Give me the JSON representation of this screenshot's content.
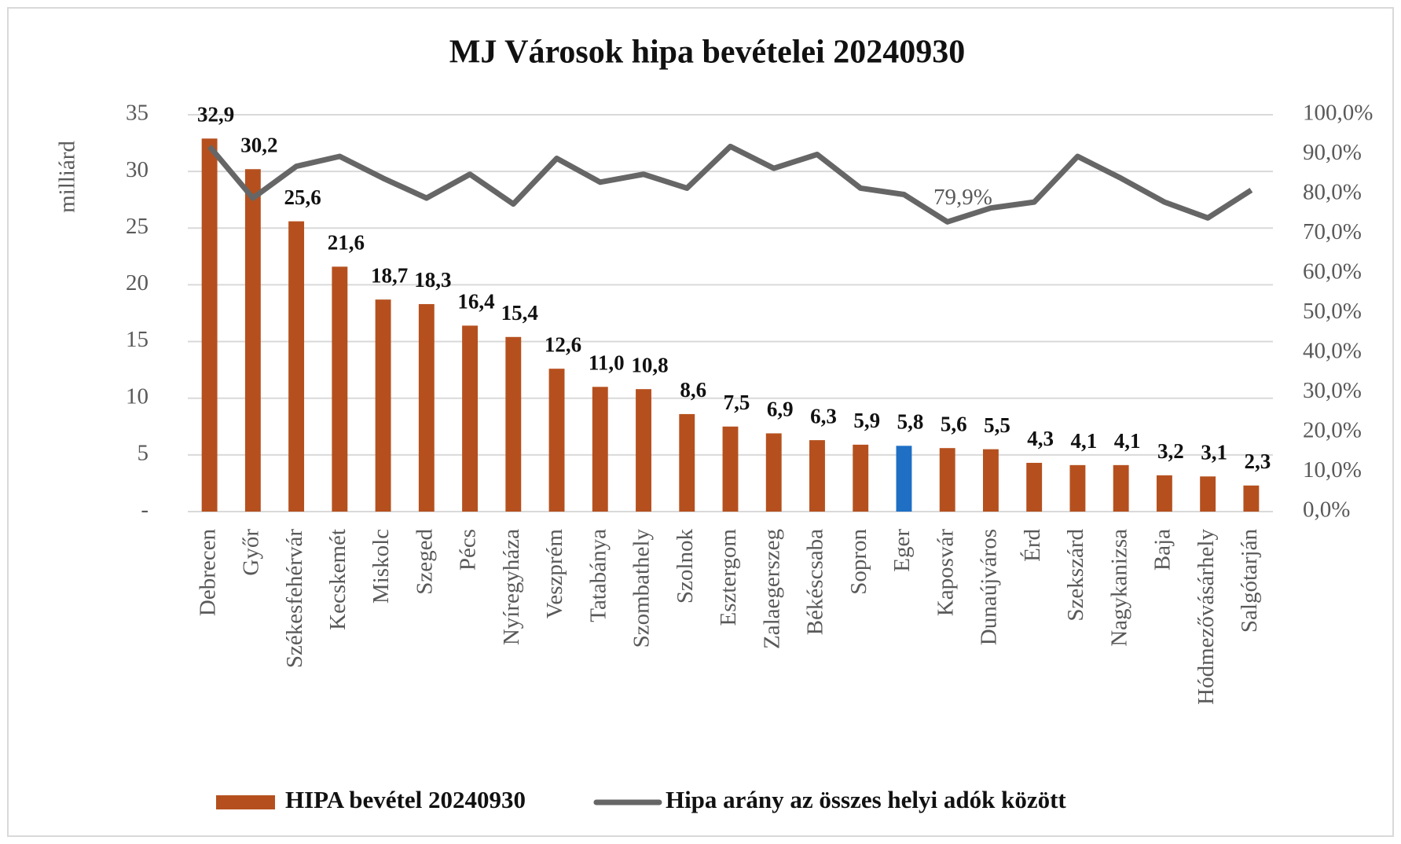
{
  "chart_data": {
    "type": "bar_line",
    "title": "MJ Városok hipa bevételei 20240930",
    "y_label": "milliárd",
    "categories": [
      "Debrecen",
      "Győr",
      "Székesfehérvár",
      "Kecskemét",
      "Miskolc",
      "Szeged",
      "Pécs",
      "Nyíregyháza",
      "Veszprém",
      "Tatabánya",
      "Szombathely",
      "Szolnok",
      "Esztergom",
      "Zalaegerszeg",
      "Békéscsaba",
      "Sopron",
      "Eger",
      "Kaposvár",
      "Dunaújváros",
      "Érd",
      "Szekszárd",
      "Nagykanizsa",
      "Baja",
      "Hódmezővásárhely",
      "Salgótarján"
    ],
    "series": [
      {
        "name": "HIPA bevétel 20240930",
        "type": "bar",
        "color": "#b5501e",
        "colors": [
          "#b5501e",
          "#b5501e",
          "#b5501e",
          "#b5501e",
          "#b5501e",
          "#b5501e",
          "#b5501e",
          "#b5501e",
          "#b5501e",
          "#b5501e",
          "#b5501e",
          "#b5501e",
          "#b5501e",
          "#b5501e",
          "#b5501e",
          "#b5501e",
          "#1f6fc5",
          "#b5501e",
          "#b5501e",
          "#b5501e",
          "#b5501e",
          "#b5501e",
          "#b5501e",
          "#b5501e",
          "#b5501e"
        ],
        "values": [
          32.9,
          30.2,
          25.6,
          21.6,
          18.7,
          18.3,
          16.4,
          15.4,
          12.6,
          11.0,
          10.8,
          8.6,
          7.5,
          6.9,
          6.3,
          5.9,
          5.8,
          5.6,
          5.5,
          4.3,
          4.1,
          4.1,
          3.2,
          3.1,
          2.3
        ],
        "value_labels": [
          "32,9",
          "30,2",
          "25,6",
          "21,6",
          "18,7",
          "18,3",
          "16,4",
          "15,4",
          "12,6",
          "11,0",
          "10,8",
          "8,6",
          "7,5",
          "6,9",
          "6,3",
          "5,9",
          "5,8",
          "5,6",
          "5,5",
          "4,3",
          "4,1",
          "4,1",
          "3,2",
          "3,1",
          "2,3"
        ]
      },
      {
        "name": "Hipa arány az összes helyi adók között",
        "type": "line",
        "axis": "y2",
        "color": "#666666",
        "values": [
          92,
          79,
          87,
          89.5,
          84,
          79,
          85,
          77.5,
          89,
          83,
          85,
          81.5,
          92,
          86.5,
          90,
          81.5,
          79.9,
          73,
          76.5,
          78,
          89.5,
          84,
          78,
          74,
          81
        ],
        "value_labels": [
          null,
          null,
          null,
          null,
          null,
          null,
          null,
          null,
          null,
          null,
          null,
          null,
          null,
          null,
          null,
          null,
          "79,9%",
          null,
          null,
          null,
          null,
          null,
          null,
          null,
          null
        ]
      }
    ],
    "ylim": [
      0,
      35
    ],
    "yticks": [
      {
        "value": 0,
        "label": "-"
      },
      5,
      10,
      15,
      20,
      25,
      30,
      35
    ],
    "y2lim": [
      0,
      100
    ],
    "y2ticks": [
      {
        "value": 0,
        "label": "0,0%"
      },
      {
        "value": 10,
        "label": "10,0%"
      },
      {
        "value": 20,
        "label": "20,0%"
      },
      {
        "value": 30,
        "label": "30,0%"
      },
      {
        "value": 40,
        "label": "40,0%"
      },
      {
        "value": 50,
        "label": "50,0%"
      },
      {
        "value": 60,
        "label": "60,0%"
      },
      {
        "value": 70,
        "label": "70,0%"
      },
      {
        "value": 80,
        "label": "80,0%"
      },
      {
        "value": 90,
        "label": "90,0%"
      },
      {
        "value": 100,
        "label": "100,0%"
      }
    ],
    "grid": true,
    "legend": "bottom"
  }
}
